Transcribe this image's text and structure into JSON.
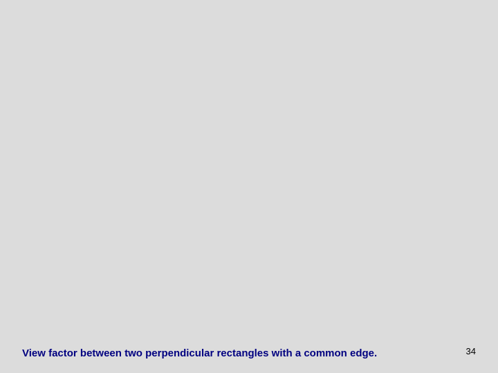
{
  "slide": {
    "caption": "View factor between two perpendicular rectangles with a common edge.",
    "page_number": "34",
    "background_color": "#dcdcdc",
    "caption_color": "#000080",
    "caption_fontsize": 15,
    "caption_fontweight": "bold",
    "page_number_color": "#000000",
    "page_number_fontsize": 13
  }
}
